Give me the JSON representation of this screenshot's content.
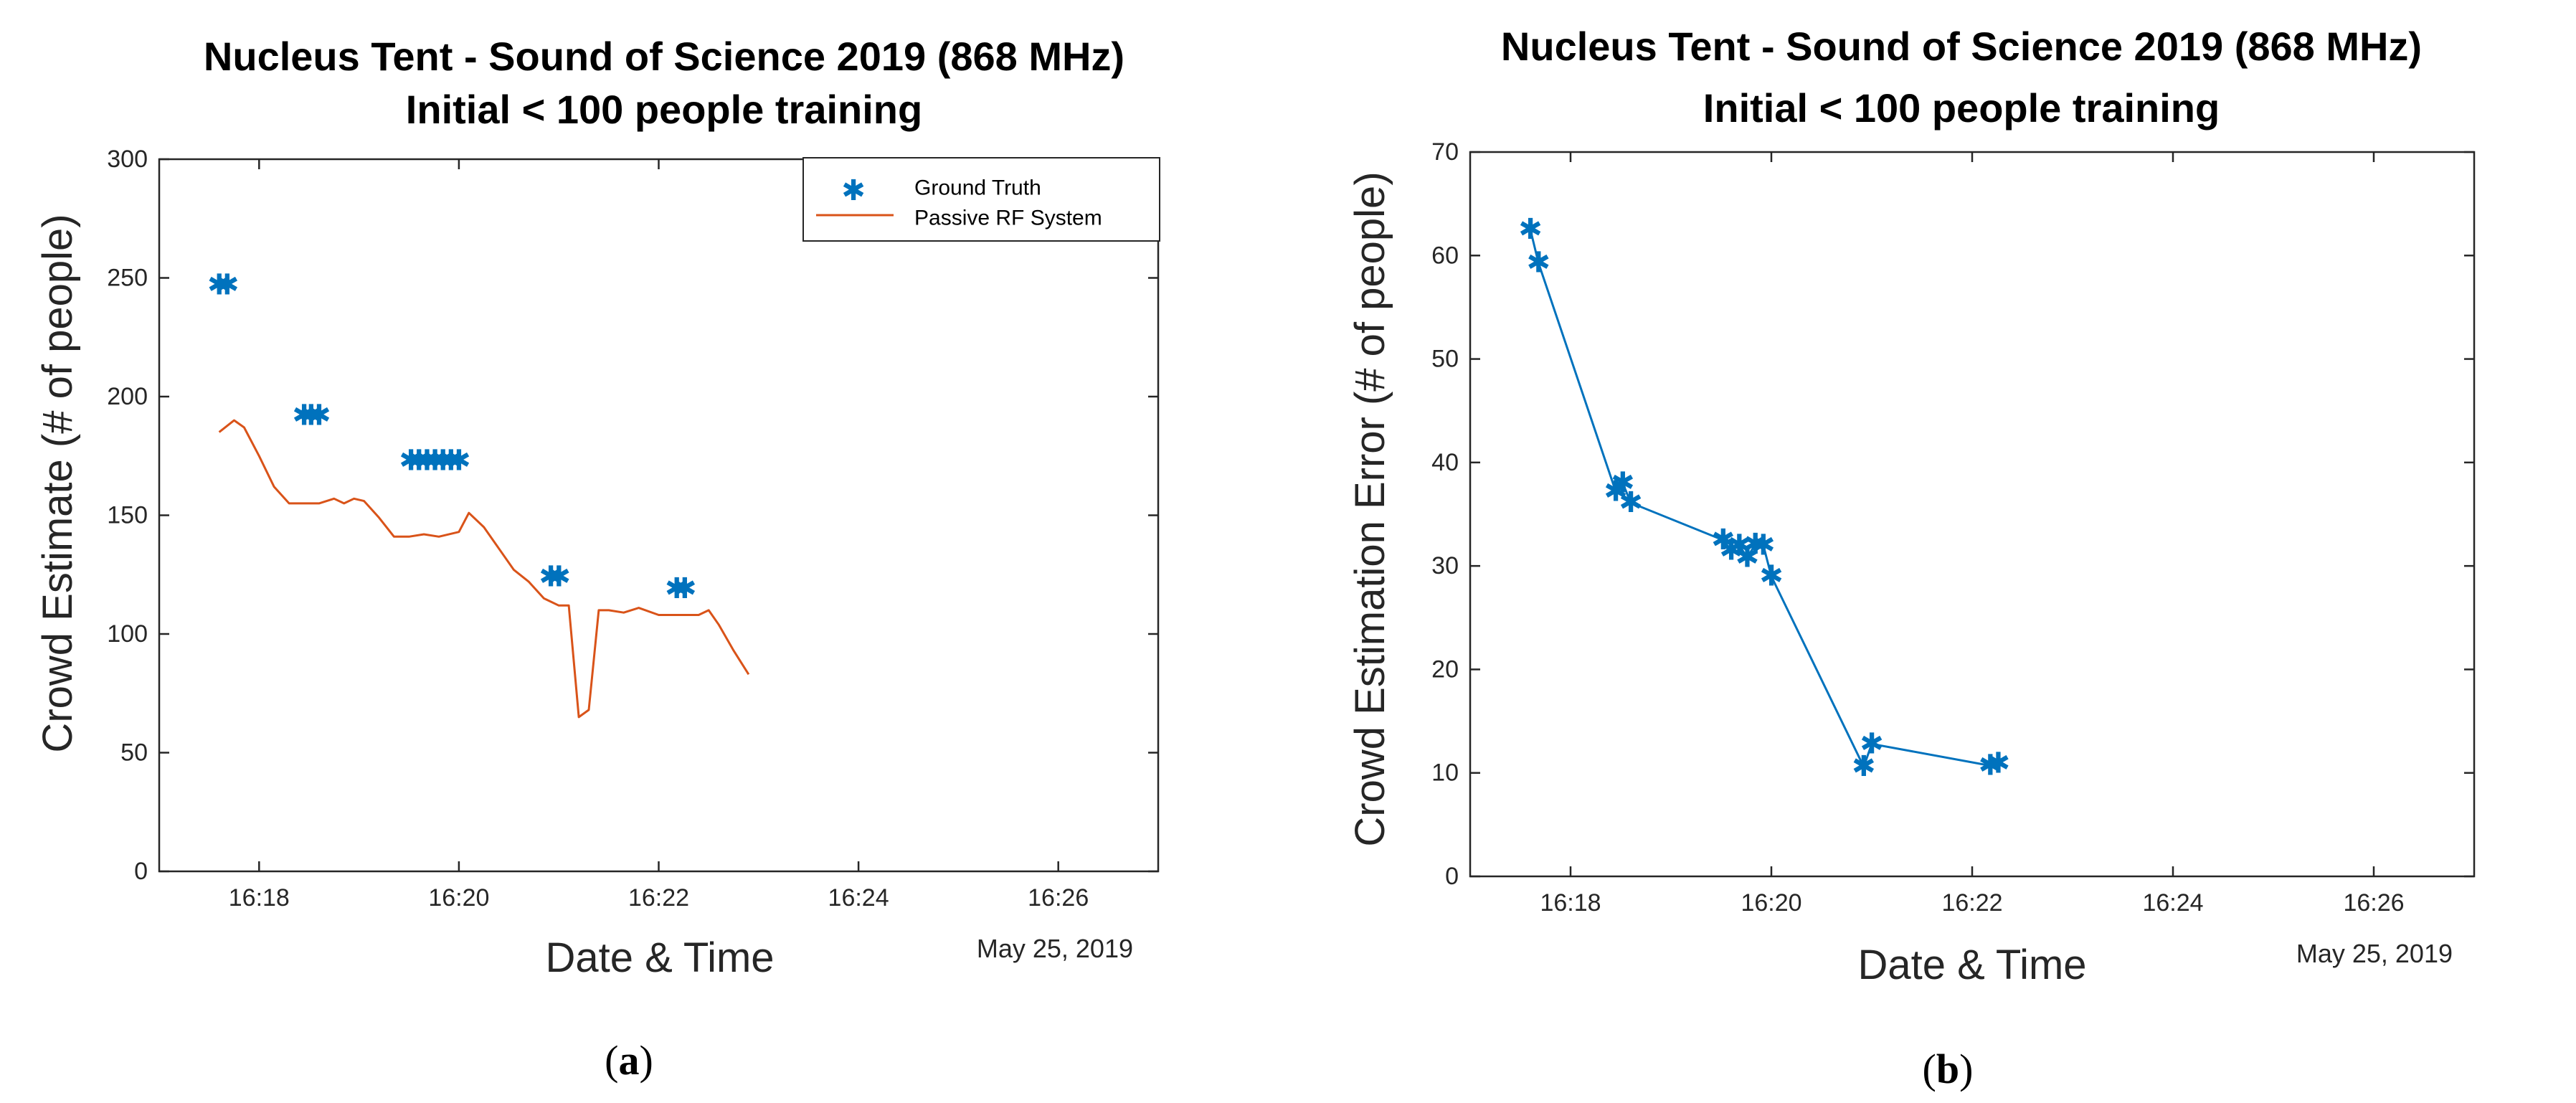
{
  "chart_data": [
    {
      "panel": "a",
      "caption_letter": "a",
      "type": "line",
      "title": [
        "Nucleus Tent - Sound of Science 2019 (868 MHz)",
        "Initial < 100 people training"
      ],
      "xlabel": "Date & Time",
      "ylabel": "Crowd Estimate (# of people)",
      "date_label": "May 25, 2019",
      "x_unit": "minutes after 16:00",
      "xlim": [
        17,
        27
      ],
      "ylim": [
        0,
        300
      ],
      "xticks": [
        {
          "v": 18,
          "label": "16:18"
        },
        {
          "v": 20,
          "label": "16:20"
        },
        {
          "v": 22,
          "label": "16:22"
        },
        {
          "v": 24,
          "label": "16:24"
        },
        {
          "v": 26,
          "label": "16:26"
        }
      ],
      "yticks": [
        0,
        50,
        100,
        150,
        200,
        250,
        300
      ],
      "legend": {
        "position": "top-right",
        "entries": [
          "Ground Truth",
          "Passive RF System"
        ]
      },
      "series": [
        {
          "name": "Ground Truth",
          "style": "markers",
          "color": "#0072BD",
          "x": [
            17.6,
            17.68,
            18.45,
            18.52,
            18.6,
            19.52,
            19.6,
            19.68,
            19.76,
            19.84,
            19.92,
            20.0,
            20.92,
            21.0,
            22.18,
            22.26
          ],
          "y": [
            247,
            247,
            192,
            192,
            192,
            173,
            173,
            173,
            173,
            173,
            173,
            173,
            124,
            124,
            119,
            119
          ]
        },
        {
          "name": "Passive RF System",
          "style": "line",
          "color": "#D95319",
          "x": [
            17.6,
            17.75,
            17.85,
            18.0,
            18.15,
            18.3,
            18.45,
            18.6,
            18.75,
            18.85,
            18.95,
            19.05,
            19.2,
            19.35,
            19.5,
            19.65,
            19.8,
            20.0,
            20.1,
            20.25,
            20.4,
            20.55,
            20.7,
            20.85,
            21.0,
            21.1,
            21.2,
            21.3,
            21.4,
            21.5,
            21.65,
            21.8,
            22.0,
            22.2,
            22.4,
            22.5,
            22.6,
            22.75,
            22.9
          ],
          "y": [
            185,
            190,
            187,
            175,
            162,
            155,
            155,
            155,
            157,
            155,
            157,
            156,
            149,
            141,
            141,
            142,
            141,
            143,
            151,
            145,
            136,
            127,
            122,
            115,
            112,
            112,
            65,
            68,
            110,
            110,
            109,
            111,
            108,
            108,
            108,
            110,
            104,
            93,
            83
          ]
        }
      ]
    },
    {
      "panel": "b",
      "caption_letter": "b",
      "type": "line",
      "title": [
        "Nucleus Tent - Sound of Science 2019 (868 MHz)",
        "Initial < 100 people training"
      ],
      "xlabel": "Date & Time",
      "ylabel": "Crowd Estimation Error (# of people)",
      "date_label": "May 25, 2019",
      "x_unit": "minutes after 16:00",
      "xlim": [
        17,
        27
      ],
      "ylim": [
        0,
        70
      ],
      "xticks": [
        {
          "v": 18,
          "label": "16:18"
        },
        {
          "v": 20,
          "label": "16:20"
        },
        {
          "v": 22,
          "label": "16:22"
        },
        {
          "v": 24,
          "label": "16:24"
        },
        {
          "v": 26,
          "label": "16:26"
        }
      ],
      "yticks": [
        0,
        10,
        20,
        30,
        40,
        50,
        60,
        70
      ],
      "series": [
        {
          "name": "Crowd Estimation Error",
          "style": "line-markers",
          "color": "#0072BD",
          "x": [
            17.6,
            17.68,
            18.45,
            18.52,
            18.6,
            19.52,
            19.6,
            19.68,
            19.76,
            19.84,
            19.92,
            20.0,
            20.92,
            21.0,
            22.18,
            22.26
          ],
          "y": [
            62.5,
            59.3,
            37.2,
            38.0,
            36.1,
            32.5,
            31.5,
            32.0,
            30.8,
            32.1,
            32.0,
            29.0,
            10.6,
            12.8,
            10.7,
            10.9
          ]
        }
      ]
    }
  ]
}
